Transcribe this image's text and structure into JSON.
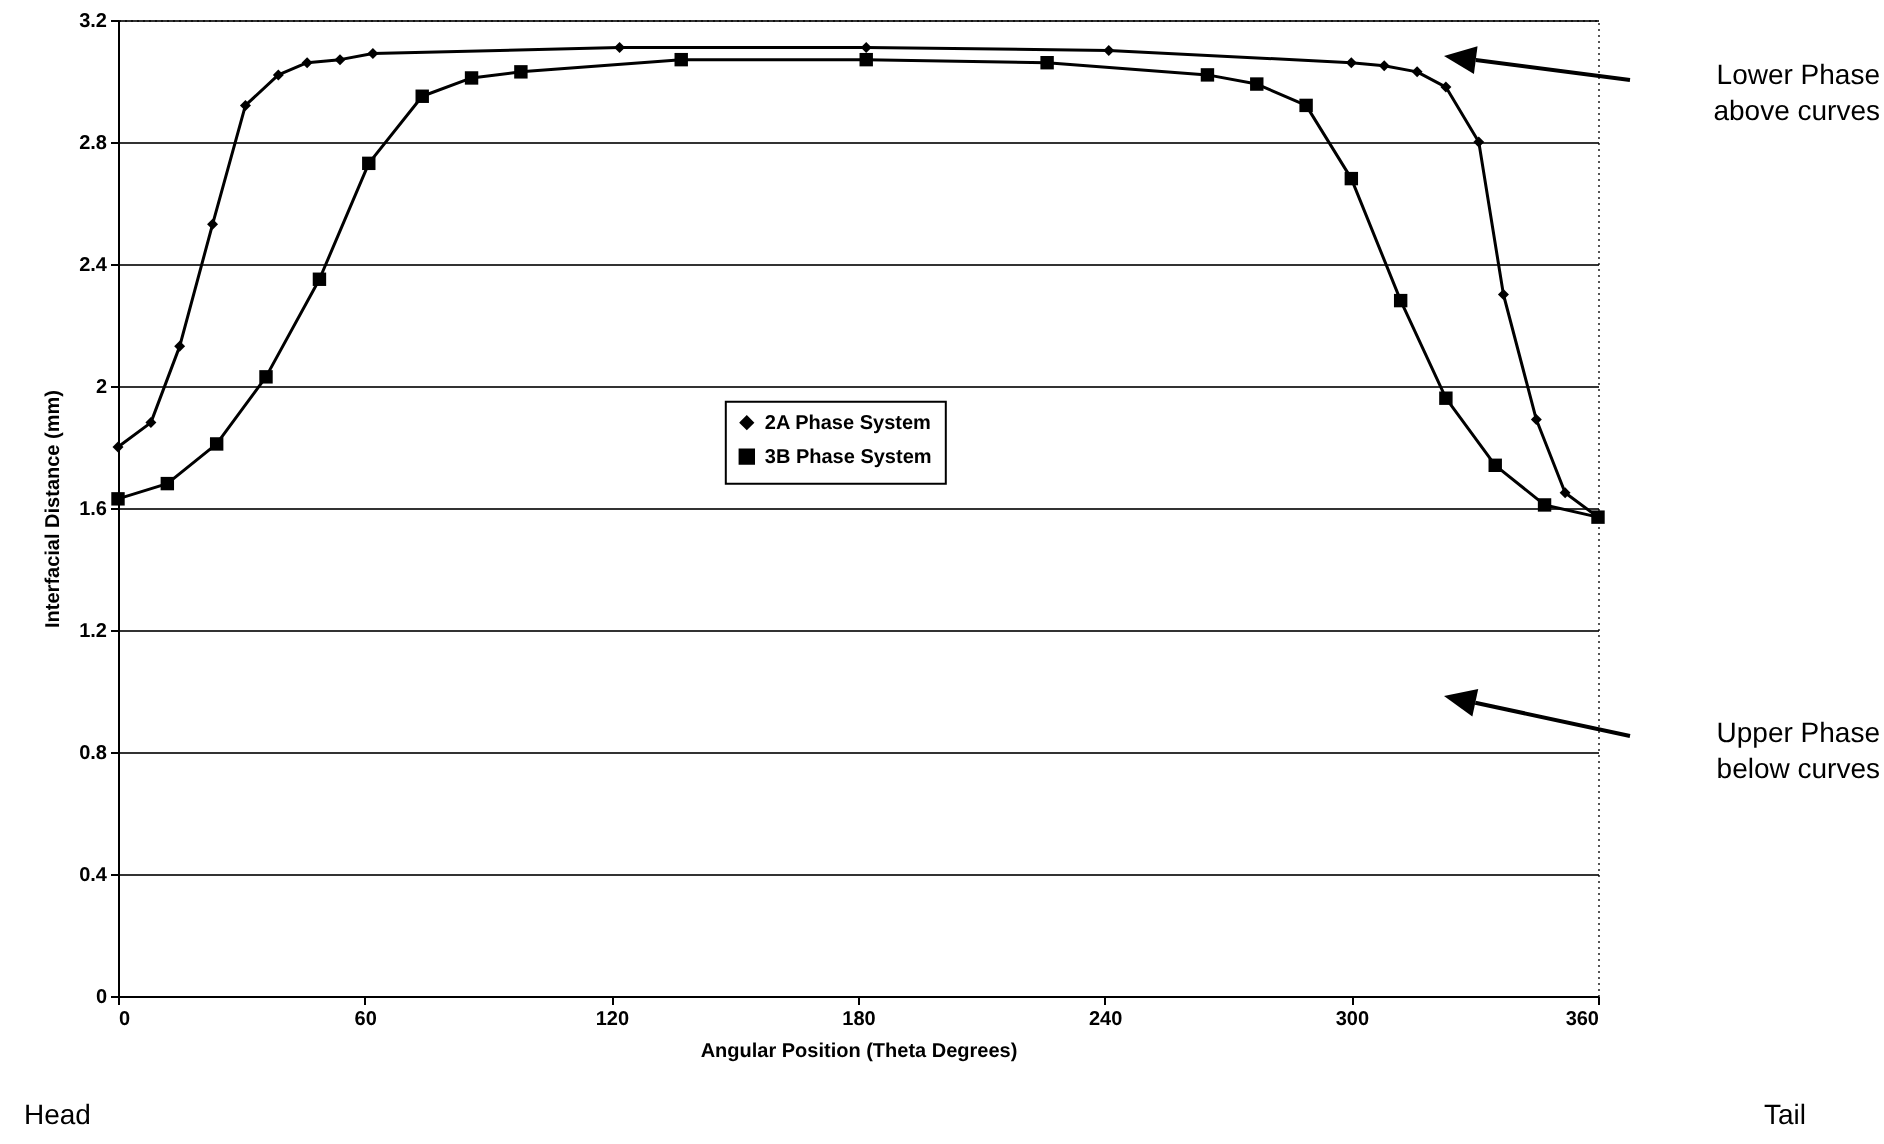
{
  "chart_data": {
    "type": "line",
    "xlabel": "Angular Position (Theta Degrees)",
    "ylabel": "Interfacial Distance (mm)",
    "xlim": [
      0,
      360
    ],
    "xticks": [
      0,
      60,
      120,
      180,
      240,
      300,
      360
    ],
    "ylim": [
      0,
      3.2
    ],
    "yticks": [
      0,
      0.4,
      0.8,
      1.2,
      1.6,
      2,
      2.4,
      2.8,
      3.2
    ],
    "grid": "y",
    "legend": "center",
    "line_style": "solid",
    "series": [
      {
        "name": "2A Phase System",
        "color": "#000000",
        "marker": "diamond",
        "x": [
          0,
          8,
          15,
          23,
          31,
          39,
          46,
          54,
          62,
          122,
          182,
          241,
          300,
          308,
          316,
          323,
          331,
          337,
          345,
          352,
          360
        ],
        "values": [
          1.8,
          1.88,
          2.13,
          2.53,
          2.92,
          3.02,
          3.06,
          3.07,
          3.09,
          3.11,
          3.11,
          3.1,
          3.06,
          3.05,
          3.03,
          2.98,
          2.8,
          2.3,
          1.89,
          1.65,
          1.57
        ]
      },
      {
        "name": "3B Phase System",
        "color": "#000000",
        "marker": "square",
        "x": [
          0,
          12,
          24,
          36,
          49,
          61,
          74,
          86,
          98,
          137,
          182,
          226,
          265,
          277,
          289,
          300,
          312,
          323,
          335,
          347,
          360
        ],
        "values": [
          1.63,
          1.68,
          1.81,
          2.03,
          2.35,
          2.73,
          2.95,
          3.01,
          3.03,
          3.07,
          3.07,
          3.06,
          3.02,
          2.99,
          2.92,
          2.68,
          2.28,
          1.96,
          1.74,
          1.61,
          1.57
        ]
      }
    ],
    "annotations": [
      "Lower Phase above curves",
      "Upper Phase below curves",
      "Head",
      "Tail"
    ]
  }
}
